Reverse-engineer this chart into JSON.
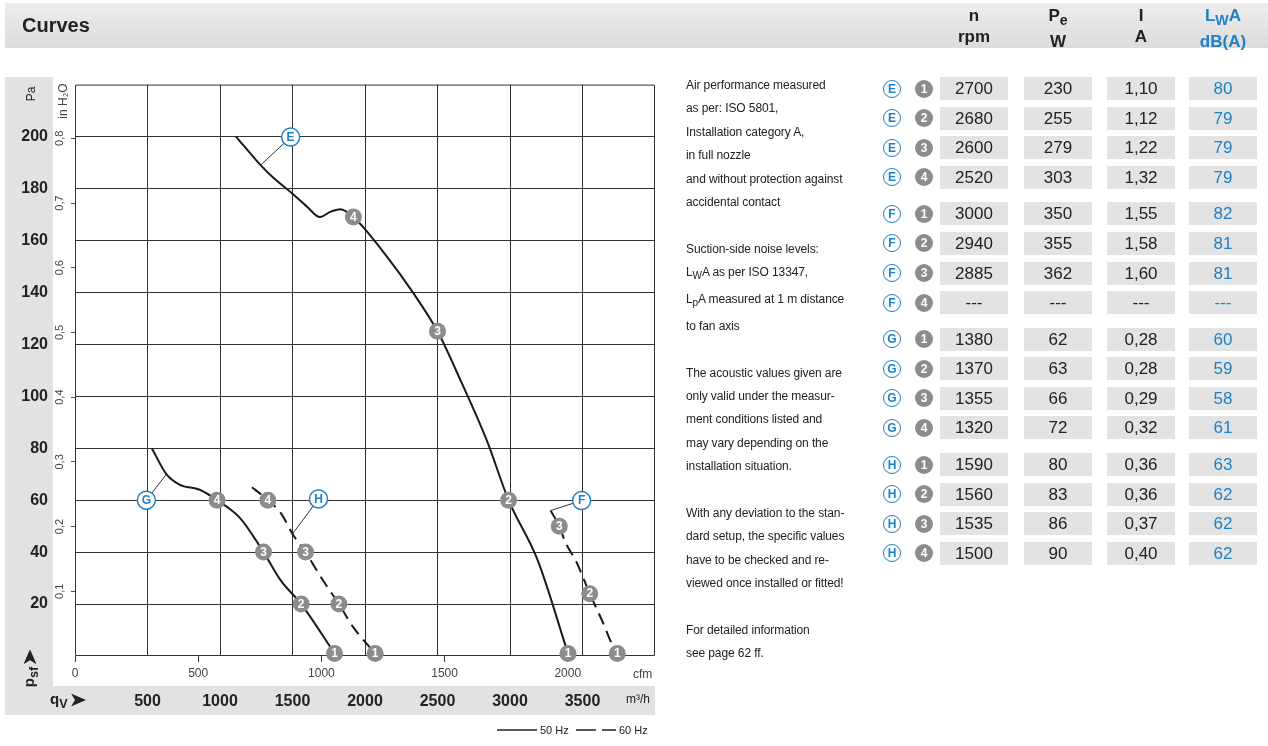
{
  "chart_data": [
    {
      "type": "line",
      "title": "Curves",
      "xlabel": "m³/h",
      "ylabel": "Pa",
      "x2label": "cfm",
      "y2label": "in H₂O",
      "xlim": [
        0,
        4000
      ],
      "xticks": [
        500,
        1000,
        1500,
        2000,
        2500,
        3000,
        3500
      ],
      "x2lim": [
        0,
        2354
      ],
      "x2ticks": [
        0,
        500,
        1000,
        1500,
        2000
      ],
      "ylim": [
        0,
        220
      ],
      "yticks": [
        20,
        40,
        60,
        80,
        100,
        120,
        140,
        160,
        180,
        200
      ],
      "y2lim": [
        0,
        0.883
      ],
      "y2ticks": [
        {
          "value": 0.1,
          "label": "0,1"
        },
        {
          "value": 0.2,
          "label": "0,2"
        },
        {
          "value": 0.3,
          "label": "0,3"
        },
        {
          "value": 0.4,
          "label": "0,4"
        },
        {
          "value": 0.5,
          "label": "0,5"
        },
        {
          "value": 0.6,
          "label": "0,6"
        },
        {
          "value": 0.7,
          "label": "0,7"
        },
        {
          "value": 0.8,
          "label": "0,8"
        }
      ],
      "grid": true,
      "marker": "none",
      "series": [
        {
          "name": "E",
          "color": "#1a1a1a",
          "line_style": "solid",
          "x": [
            1110,
            1280,
            1370,
            1500,
            1600,
            1690,
            1760,
            1830,
            1920,
            2120,
            2330,
            2500,
            2660,
            2840,
            2990,
            3190,
            3400
          ],
          "values": [
            200,
            189,
            184,
            178,
            173,
            169,
            171,
            172,
            169,
            156,
            140,
            125,
            106,
            83,
            60,
            37,
            1
          ]
        },
        {
          "name": "F",
          "color": "#1a1a1a",
          "line_style": "dashed",
          "x": [
            3280,
            3340,
            3380,
            3460,
            3550,
            3640,
            3700,
            3740
          ],
          "values": [
            56,
            50,
            44,
            36,
            24,
            13,
            5,
            1
          ]
        },
        {
          "name": "G",
          "color": "#1a1a1a",
          "line_style": "solid",
          "x": [
            530,
            630,
            720,
            860,
            980,
            1140,
            1300,
            1420,
            1560,
            1790
          ],
          "values": [
            80,
            70,
            66,
            64,
            60,
            53,
            40,
            29,
            20,
            1
          ]
        },
        {
          "name": "H",
          "color": "#1a1a1a",
          "line_style": "dashed",
          "x": [
            1220,
            1330,
            1420,
            1500,
            1590,
            1700,
            1820,
            1920,
            2070
          ],
          "values": [
            65,
            60,
            55,
            47,
            40,
            30,
            20,
            11,
            1
          ]
        }
      ],
      "annotations": [
        "q$_{V}$",
        "p$_{sf}$",
        "50 Hz",
        "60 Hz",
        {
          "text": "4",
          "x": 1920,
          "y": 169
        },
        {
          "text": "3",
          "x": 2500,
          "y": 125
        },
        {
          "text": "2",
          "x": 2990,
          "y": 60
        },
        {
          "text": "1",
          "x": 3400,
          "y": 1
        },
        {
          "text": "3",
          "x": 3340,
          "y": 50
        },
        {
          "text": "2",
          "x": 3550,
          "y": 24
        },
        {
          "text": "1",
          "x": 3740,
          "y": 1
        },
        {
          "text": "4",
          "x": 980,
          "y": 60
        },
        {
          "text": "3",
          "x": 1300,
          "y": 40
        },
        {
          "text": "2",
          "x": 1560,
          "y": 20
        },
        {
          "text": "1",
          "x": 1790,
          "y": 1
        },
        {
          "text": "4",
          "x": 1330,
          "y": 60
        },
        {
          "text": "3",
          "x": 1590,
          "y": 40
        },
        {
          "text": "2",
          "x": 1820,
          "y": 20
        },
        {
          "text": "1",
          "x": 2070,
          "y": 1
        }
      ]
    },
    {
      "type": "heatmap",
      "categories": [
        "n rpm",
        "P$_{e}$ W",
        "I A",
        "L$_{W}$A dB(A)"
      ],
      "y_categories": [
        "E 1",
        "E 2",
        "E 3",
        "E 4",
        "F 1",
        "F 2",
        "F 3",
        "F 4",
        "G 1",
        "G 2",
        "G 3",
        "G 4",
        "H 1",
        "H 2",
        "H 3",
        "H 4"
      ],
      "cells": [
        [
          2700,
          230,
          1.1,
          80
        ],
        [
          2680,
          255,
          1.12,
          79
        ],
        [
          2600,
          279,
          1.22,
          79
        ],
        [
          2520,
          303,
          1.32,
          79
        ],
        [
          3000,
          350,
          1.55,
          82
        ],
        [
          2940,
          355,
          1.58,
          81
        ],
        [
          2885,
          362,
          1.6,
          81
        ],
        [
          null,
          null,
          null,
          null
        ],
        [
          1380,
          62,
          0.28,
          60
        ],
        [
          1370,
          63,
          0.28,
          59
        ],
        [
          1355,
          66,
          0.29,
          58
        ],
        [
          1320,
          72,
          0.32,
          61
        ],
        [
          1590,
          80,
          0.36,
          63
        ],
        [
          1560,
          83,
          0.36,
          62
        ],
        [
          1535,
          86,
          0.37,
          62
        ],
        [
          1500,
          90,
          0.4,
          62
        ]
      ],
      "cell_labels": [
        [
          "2700",
          "230",
          "1,10",
          "80"
        ],
        [
          "2680",
          "255",
          "1,12",
          "79"
        ],
        [
          "2600",
          "279",
          "1,22",
          "79"
        ],
        [
          "2520",
          "303",
          "1,32",
          "79"
        ],
        [
          "3000",
          "350",
          "1,55",
          "82"
        ],
        [
          "2940",
          "355",
          "1,58",
          "81"
        ],
        [
          "2885",
          "362",
          "1,60",
          "81"
        ],
        [
          "---",
          "---",
          "---",
          "---"
        ],
        [
          "1380",
          "62",
          "0,28",
          "60"
        ],
        [
          "1370",
          "63",
          "0,28",
          "59"
        ],
        [
          "1355",
          "66",
          "0,29",
          "58"
        ],
        [
          "1320",
          "72",
          "0,32",
          "61"
        ],
        [
          "1590",
          "80",
          "0,36",
          "63"
        ],
        [
          "1560",
          "83",
          "0,36",
          "62"
        ],
        [
          "1535",
          "86",
          "0,37",
          "62"
        ],
        [
          "1500",
          "90",
          "0,40",
          "62"
        ]
      ],
      "annotations": [
        "Air performance measured\nas per: ISO 5801,\nInstallation category A,\nin full nozzle\nand without protection against\naccidental contact",
        "Suction-side noise levels:\nL$_{W}$A as per ISO 13347,\nL$_{p}$A measured at 1 m distance\nto fan axis",
        "The acoustic values given are\nonly valid under the measur-\nment conditions listed and\nmay vary depending on the\ninstallation situation.",
        "With any deviation to the stan-\ndard setup, the specific values\nhave to be checked and re-\nviewed once installed or fitted!",
        "For detailed information\nsee page 62 ff."
      ]
    }
  ]
}
